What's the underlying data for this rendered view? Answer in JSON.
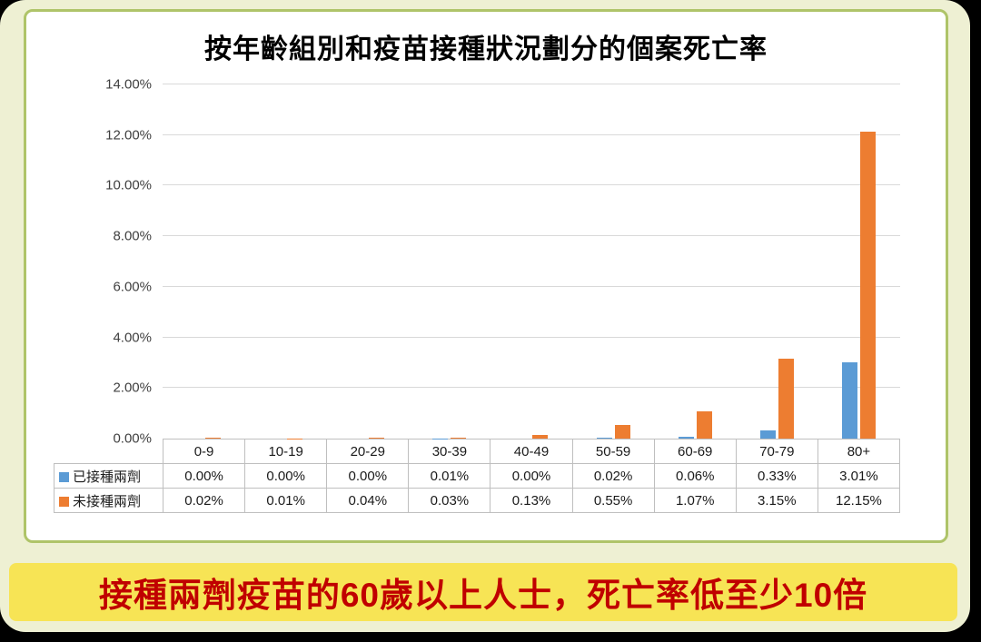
{
  "chart_data": {
    "type": "bar",
    "title": "按年齡組別和疫苗接種狀況劃分的個案死亡率",
    "categories": [
      "0-9",
      "10-19",
      "20-29",
      "30-39",
      "40-49",
      "50-59",
      "60-69",
      "70-79",
      "80+"
    ],
    "series": [
      {
        "name": "已接種兩劑",
        "color": "#5b9bd5",
        "values": [
          0.0,
          0.0,
          0.0,
          0.01,
          0.0,
          0.02,
          0.06,
          0.33,
          3.01
        ],
        "labels": [
          "0.00%",
          "0.00%",
          "0.00%",
          "0.01%",
          "0.00%",
          "0.02%",
          "0.06%",
          "0.33%",
          "3.01%"
        ]
      },
      {
        "name": "未接種兩劑",
        "color": "#ed7d31",
        "values": [
          0.02,
          0.01,
          0.04,
          0.03,
          0.13,
          0.55,
          1.07,
          3.15,
          12.15
        ],
        "labels": [
          "0.02%",
          "0.01%",
          "0.04%",
          "0.03%",
          "0.13%",
          "0.55%",
          "1.07%",
          "3.15%",
          "12.15%"
        ]
      }
    ],
    "ylim": [
      0,
      14
    ],
    "ytick_step": 2,
    "ytick_labels": [
      "0.00%",
      "2.00%",
      "4.00%",
      "6.00%",
      "8.00%",
      "10.00%",
      "12.00%",
      "14.00%"
    ],
    "grid": true,
    "legend_position": "table-left"
  },
  "banner": {
    "text": "接種兩劑疫苗的60歲以上人士，死亡率低至少10倍"
  },
  "colors": {
    "series_vaccinated": "#5b9bd5",
    "series_unvaccinated": "#ed7d31",
    "page_bg": "#eef0d3",
    "card_border": "#afc469",
    "banner_bg": "#f7e455",
    "banner_text": "#c00000"
  }
}
